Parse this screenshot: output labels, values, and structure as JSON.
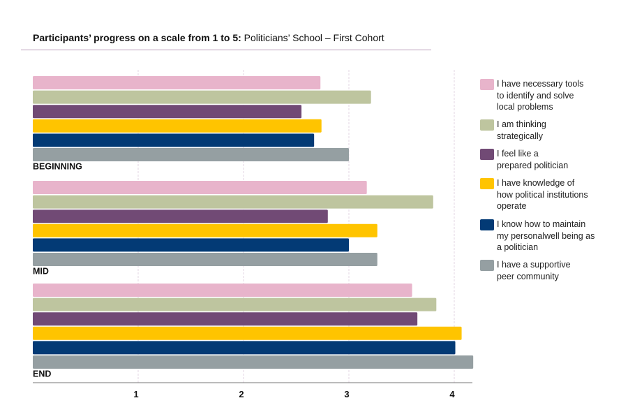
{
  "chart_data": {
    "type": "bar",
    "orientation": "horizontal",
    "title_bold": "Participants’ progress on a scale from 1 to 5:",
    "title_rest": " Politicians’ School – First Cohort",
    "categories": [
      "BEGINNING",
      "MID",
      "END"
    ],
    "xlim": [
      0,
      4.2
    ],
    "xticks": [
      "1",
      "2",
      "3",
      "4"
    ],
    "grid": "vertical dashed",
    "legend_position": "right",
    "series": [
      {
        "name": "I have necessary tools\nto identify and solve\nlocal problems",
        "color": "#e8b4cb",
        "values": [
          2.73,
          3.17,
          3.6
        ]
      },
      {
        "name": "I am thinking\nstrategically",
        "color": "#bec59f",
        "values": [
          3.21,
          3.8,
          3.83
        ]
      },
      {
        "name": "I feel like a\nprepared politician",
        "color": "#714a75",
        "values": [
          2.55,
          2.8,
          3.65
        ]
      },
      {
        "name": "I have knowledge of\nhow political institutions\noperate",
        "color": "#ffc400",
        "values": [
          2.74,
          3.27,
          4.07
        ]
      },
      {
        "name": "I know how to maintain\nmy personalwell being as\na politician",
        "color": "#033a75",
        "values": [
          2.67,
          3.0,
          4.01
        ]
      },
      {
        "name": "I have a supportive\npeer community",
        "color": "#959fa2",
        "values": [
          3.0,
          3.27,
          4.18
        ]
      }
    ]
  }
}
